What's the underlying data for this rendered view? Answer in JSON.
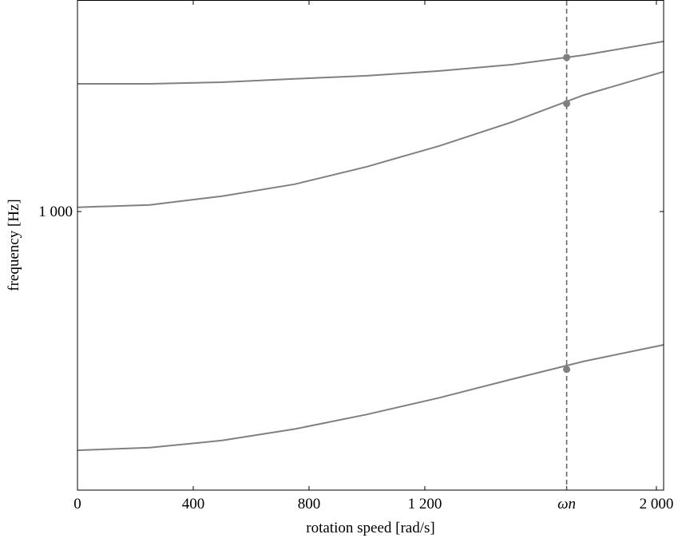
{
  "chart_data": {
    "type": "line",
    "xlabel": "rotation speed [rad/s]",
    "ylabel": "frequency [Hz]",
    "x": [
      0,
      250,
      500,
      750,
      1000,
      1250,
      1500,
      1750,
      2025
    ],
    "series": [
      {
        "color": "#808080",
        "values": [
          1522,
          1522,
          1530,
          1547,
          1563,
          1588,
          1621,
          1673,
          1750
        ],
        "highlight_value": 1660
      },
      {
        "color": "#808080",
        "values": [
          1014,
          1022,
          1052,
          1094,
          1159,
          1241,
          1342,
          1467,
          1584
        ],
        "highlight_value": 1426
      },
      {
        "color": "#808080",
        "values": [
          456,
          460,
          471,
          489,
          513,
          542,
          576,
          611,
          645
        ],
        "highlight_value": 595
      }
    ],
    "highlight_x": 1690,
    "xlim": [
      0,
      2025
    ],
    "xticks": [
      0,
      400,
      800,
      {
        "value": 1200,
        "label": "1 200"
      },
      {
        "value": 1690,
        "label": "ωn"
      },
      {
        "value": 2000,
        "label": "2 000"
      }
    ],
    "ylim": [
      400,
      2000
    ],
    "log_y": true,
    "yticks": [
      {
        "value": 1000,
        "label": "1 000"
      }
    ]
  }
}
